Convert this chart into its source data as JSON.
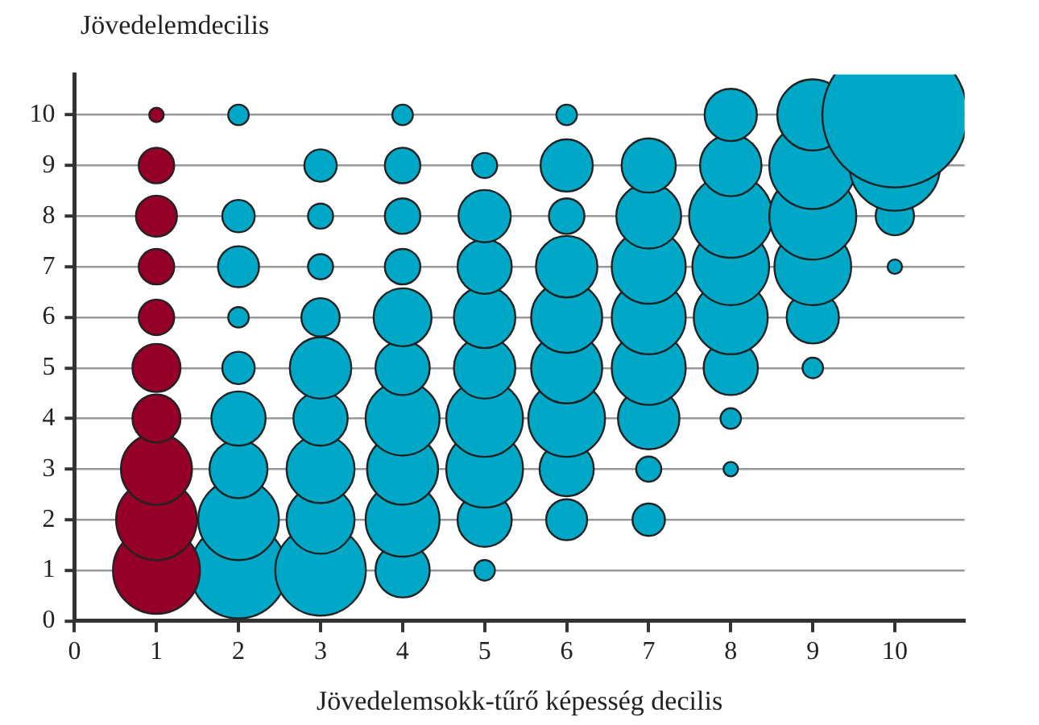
{
  "chart_data": {
    "type": "bubble",
    "xlabel": "Jövedelemsokk-tűrő képesség decilis",
    "ylabel": "Jövedelemdecilis",
    "xlim": [
      0,
      10.85
    ],
    "xticks": [
      0,
      1,
      2,
      3,
      4,
      5,
      6,
      7,
      8,
      9,
      10
    ],
    "ylim": [
      0,
      10.8
    ],
    "yticks": [
      0,
      1,
      2,
      3,
      4,
      5,
      6,
      7,
      8,
      9,
      10
    ],
    "grid": "y",
    "legend": false,
    "marker": "circle",
    "series": [
      {
        "color": "#960028",
        "x": [
          1,
          1,
          1,
          1,
          1,
          1,
          1,
          1,
          1,
          1
        ],
        "values": [
          1,
          2,
          3,
          4,
          5,
          6,
          7,
          8,
          9,
          10
        ],
        "sizes": [
          0.36,
          0.31,
          0.24,
          0.11,
          0.11,
          0.06,
          0.06,
          0.08,
          0.06,
          0.01
        ]
      },
      {
        "color": "#00a8c8",
        "x": [
          2,
          2,
          2,
          2,
          2,
          2,
          2,
          2,
          2,
          3,
          3,
          3,
          3,
          3,
          3,
          3,
          3,
          3,
          4,
          4,
          4,
          4,
          4,
          4,
          4,
          4,
          4,
          4,
          5,
          5,
          5,
          5,
          5,
          5,
          5,
          5,
          5,
          6,
          6,
          6,
          6,
          6,
          6,
          6,
          6,
          6,
          7,
          7,
          7,
          7,
          7,
          7,
          7,
          7,
          8,
          8,
          8,
          8,
          8,
          8,
          8,
          8,
          9,
          9,
          9,
          9,
          9,
          9,
          10,
          10,
          10,
          10
        ],
        "values": [
          1,
          2,
          3,
          4,
          5,
          6,
          7,
          8,
          10,
          1,
          2,
          3,
          4,
          5,
          6,
          7,
          8,
          9,
          1,
          2,
          3,
          4,
          5,
          6,
          7,
          8,
          9,
          10,
          1,
          2,
          3,
          4,
          5,
          6,
          7,
          8,
          9,
          2,
          3,
          4,
          5,
          6,
          7,
          8,
          9,
          10,
          2,
          3,
          4,
          5,
          6,
          7,
          8,
          9,
          3,
          4,
          5,
          6,
          7,
          8,
          9,
          10,
          5,
          6,
          7,
          8,
          9,
          10,
          7,
          8,
          9,
          10
        ],
        "sizes": [
          0.44,
          0.31,
          0.16,
          0.14,
          0.05,
          0.02,
          0.08,
          0.05,
          0.02,
          0.39,
          0.22,
          0.22,
          0.14,
          0.18,
          0.07,
          0.03,
          0.03,
          0.05,
          0.14,
          0.26,
          0.24,
          0.26,
          0.14,
          0.16,
          0.06,
          0.06,
          0.06,
          0.02,
          0.02,
          0.14,
          0.28,
          0.28,
          0.18,
          0.18,
          0.14,
          0.13,
          0.03,
          0.08,
          0.14,
          0.28,
          0.24,
          0.24,
          0.18,
          0.06,
          0.13,
          0.02,
          0.05,
          0.03,
          0.18,
          0.26,
          0.26,
          0.26,
          0.2,
          0.14,
          0.01,
          0.02,
          0.14,
          0.26,
          0.28,
          0.33,
          0.18,
          0.13,
          0.02,
          0.13,
          0.28,
          0.36,
          0.36,
          0.24,
          0.01,
          0.07,
          0.39,
          1
        ]
      }
    ]
  }
}
